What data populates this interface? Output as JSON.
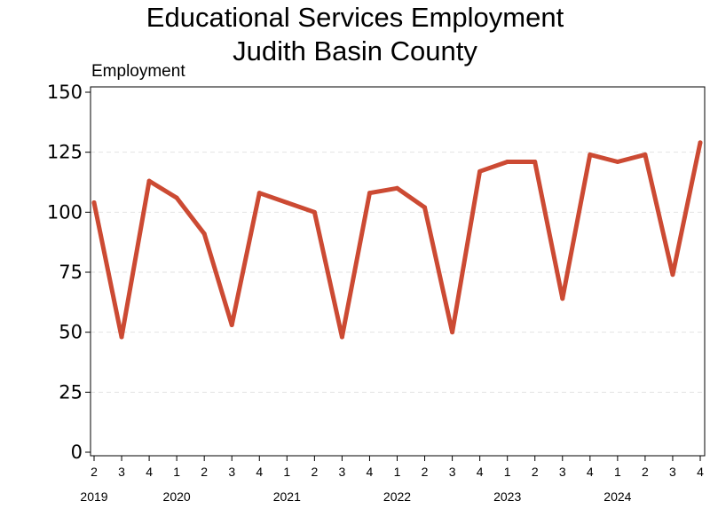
{
  "chart_data": {
    "type": "line",
    "title_lines": [
      "Educational Services Employment",
      "Judith Basin County"
    ],
    "ylabel": "Employment",
    "ylim": [
      0,
      150
    ],
    "yticks": [
      0,
      25,
      50,
      75,
      100,
      125,
      150
    ],
    "x_quarter_labels": [
      "2",
      "3",
      "4",
      "1",
      "2",
      "3",
      "4",
      "1",
      "2",
      "3",
      "4",
      "1",
      "2",
      "3",
      "4",
      "1",
      "2",
      "3",
      "4",
      "1",
      "2",
      "3",
      "4"
    ],
    "x_year_labels": [
      {
        "label": "2019",
        "index": 0
      },
      {
        "label": "2020",
        "index": 3
      },
      {
        "label": "2021",
        "index": 7
      },
      {
        "label": "2022",
        "index": 11
      },
      {
        "label": "2023",
        "index": 15
      },
      {
        "label": "2024",
        "index": 19
      }
    ],
    "series": [
      {
        "values": [
          104,
          48,
          113,
          106,
          91,
          53,
          108,
          104,
          100,
          48,
          108,
          110,
          102,
          50,
          117,
          121,
          121,
          64,
          124,
          121,
          124,
          74,
          129
        ]
      }
    ],
    "line_color": "#cc4a33",
    "grid": "horizontal dashed"
  }
}
